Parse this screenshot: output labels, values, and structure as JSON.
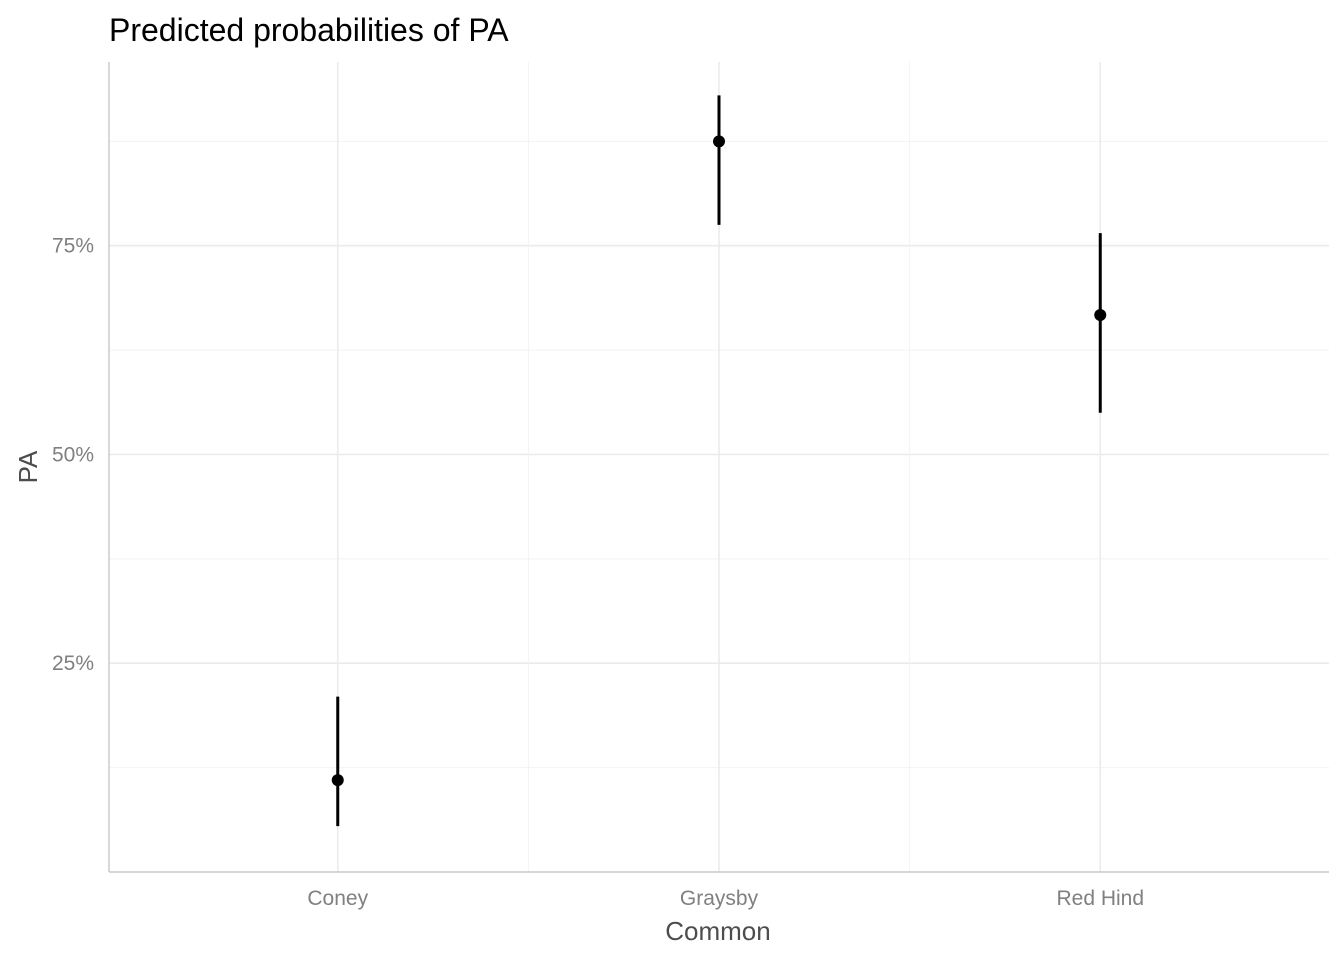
{
  "chart_data": {
    "type": "scatter",
    "title": "Predicted probabilities of PA",
    "xlabel": "Common",
    "ylabel": "PA",
    "categories": [
      "Coney",
      "Graysby",
      "Red Hind"
    ],
    "values": [
      0.11,
      0.875,
      0.667
    ],
    "ci_lower": [
      0.055,
      0.775,
      0.55
    ],
    "ci_upper": [
      0.21,
      0.93,
      0.765
    ],
    "ylim": [
      0.0,
      0.97
    ],
    "yticks": [
      0.25,
      0.5,
      0.75
    ],
    "ytick_labels": [
      "25%",
      "50%",
      "75%"
    ],
    "y_minor_grid": [
      0.125,
      0.375,
      0.625,
      0.875
    ],
    "grid": true,
    "legend": "none",
    "colors": {
      "point": "#000000",
      "errorbar": "#000000",
      "grid_major": "#ebebeb",
      "axis_text": "#808080",
      "axis_title": "#4d4d4d"
    }
  }
}
